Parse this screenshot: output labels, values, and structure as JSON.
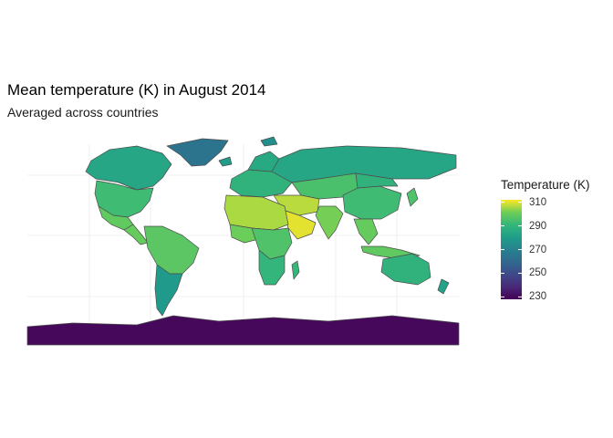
{
  "title": "Mean temperature (K) in August 2014",
  "subtitle": "Averaged across countries",
  "legend": {
    "title": "Temperature (K)",
    "ticks": [
      310,
      290,
      270,
      250,
      230
    ],
    "range": [
      228,
      312
    ],
    "palette": "viridis"
  },
  "map": {
    "projection": "equirectangular",
    "ocean_color": "#ffffff",
    "border_color": "#4d4d4d",
    "grid": true,
    "regions": [
      {
        "name": "Greenland",
        "temp_k": 264
      },
      {
        "name": "Canada",
        "temp_k": 284
      },
      {
        "name": "United States",
        "temp_k": 293
      },
      {
        "name": "Mexico",
        "temp_k": 299
      },
      {
        "name": "Central America",
        "temp_k": 300
      },
      {
        "name": "South America North",
        "temp_k": 298
      },
      {
        "name": "South America South",
        "temp_k": 279
      },
      {
        "name": "Europe",
        "temp_k": 289
      },
      {
        "name": "Scandinavia",
        "temp_k": 285
      },
      {
        "name": "Russia",
        "temp_k": 284
      },
      {
        "name": "Central Asia",
        "temp_k": 295
      },
      {
        "name": "Middle East",
        "temp_k": 307
      },
      {
        "name": "Arabia",
        "temp_k": 310
      },
      {
        "name": "North Africa",
        "temp_k": 306
      },
      {
        "name": "West Africa",
        "temp_k": 301
      },
      {
        "name": "Central Africa",
        "temp_k": 296
      },
      {
        "name": "Southern Africa",
        "temp_k": 290
      },
      {
        "name": "Madagascar",
        "temp_k": 291
      },
      {
        "name": "India",
        "temp_k": 302
      },
      {
        "name": "China",
        "temp_k": 293
      },
      {
        "name": "Mongolia",
        "temp_k": 289
      },
      {
        "name": "Southeast Asia",
        "temp_k": 300
      },
      {
        "name": "Japan",
        "temp_k": 296
      },
      {
        "name": "Indonesia",
        "temp_k": 299
      },
      {
        "name": "Australia",
        "temp_k": 289
      },
      {
        "name": "New Zealand",
        "temp_k": 282
      },
      {
        "name": "Iceland",
        "temp_k": 280
      },
      {
        "name": "Svalbard",
        "temp_k": 275
      },
      {
        "name": "Antarctica",
        "temp_k": 230
      }
    ]
  }
}
